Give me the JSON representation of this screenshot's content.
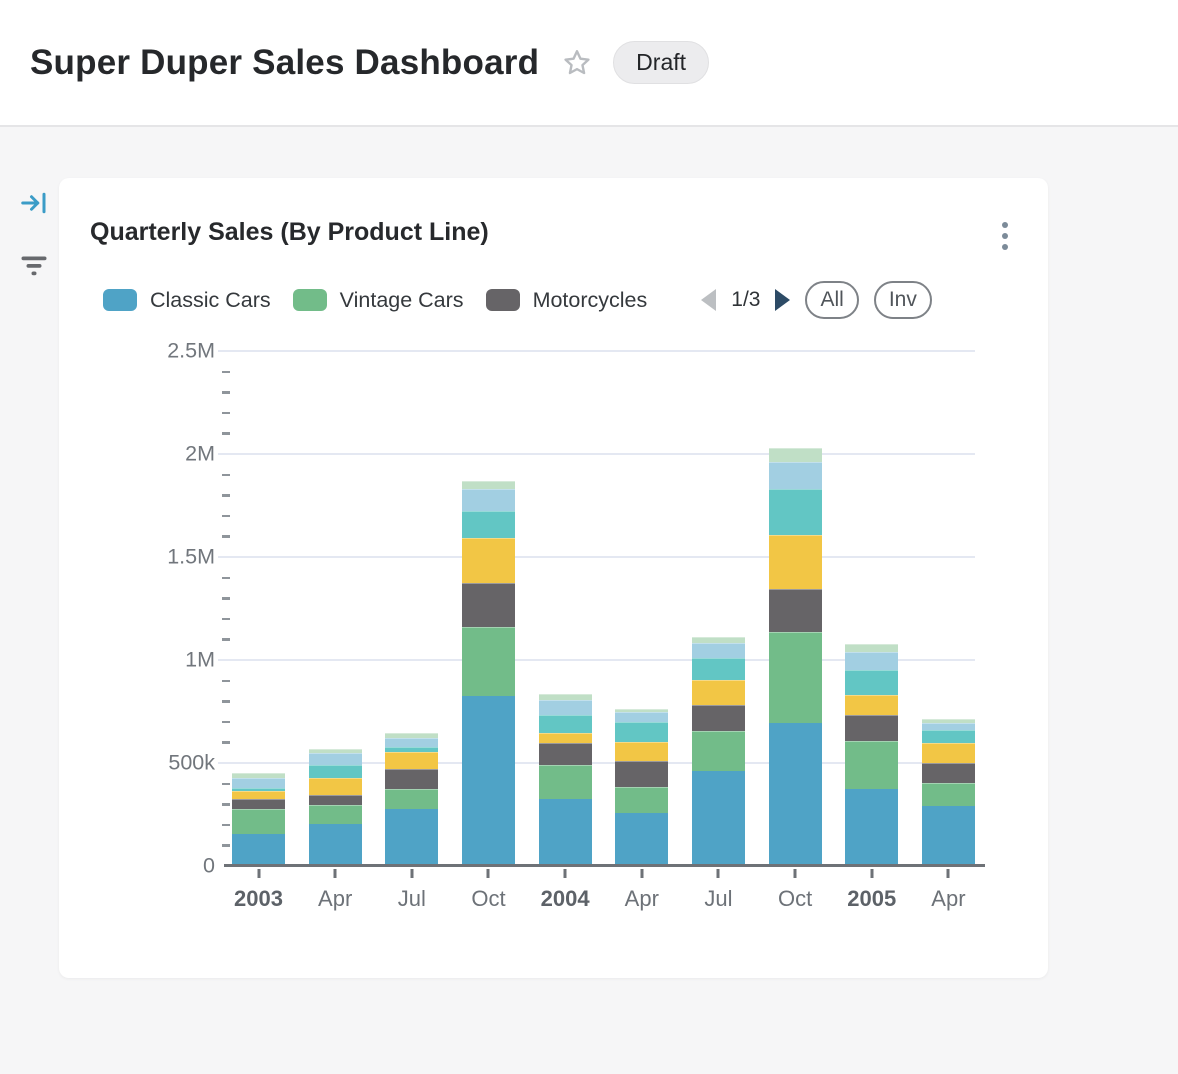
{
  "header": {
    "title": "Super Duper Sales Dashboard",
    "status_badge": "Draft"
  },
  "side_toolbar": {
    "icons": [
      "collapse-panel",
      "filter"
    ]
  },
  "card": {
    "title": "Quarterly Sales (By Product Line)",
    "legend": {
      "visible_items": [
        {
          "label": "Classic Cars",
          "color": "#4fa3c6"
        },
        {
          "label": "Vintage Cars",
          "color": "#72bc89"
        },
        {
          "label": "Motorcycles",
          "color": "#666467"
        }
      ],
      "page_indicator": "1/3",
      "buttons": [
        {
          "label": "All"
        },
        {
          "label": "Inv"
        }
      ]
    }
  },
  "chart_data": {
    "type": "bar",
    "stacked": true,
    "title": "Quarterly Sales (By Product Line)",
    "categories": [
      "2003",
      "Apr",
      "Jul",
      "Oct",
      "2004",
      "Apr",
      "Jul",
      "Oct",
      "2005",
      "Apr"
    ],
    "bold_category_indexes": [
      0,
      4,
      8
    ],
    "series": [
      {
        "name": "Classic Cars",
        "color": "#4fa3c6",
        "in_visible_legend": true,
        "values": [
          157000,
          206000,
          277000,
          826000,
          324000,
          255000,
          459000,
          694000,
          372000,
          291000
        ]
      },
      {
        "name": "Vintage Cars",
        "color": "#72bc89",
        "in_visible_legend": true,
        "values": [
          122000,
          89000,
          96000,
          335000,
          167000,
          130000,
          198000,
          444000,
          233000,
          111000
        ]
      },
      {
        "name": "Motorcycles",
        "color": "#666467",
        "in_visible_legend": true,
        "values": [
          46000,
          49000,
          99000,
          212000,
          106000,
          127000,
          127000,
          207000,
          130000,
          100000
        ]
      },
      {
        "name": "unlabeled-series-yellow",
        "color": "#f2c645",
        "in_visible_legend": false,
        "values": [
          37000,
          81000,
          82000,
          218000,
          49000,
          88000,
          118000,
          260000,
          93000,
          95000
        ]
      },
      {
        "name": "unlabeled-series-teal",
        "color": "#62c6c4",
        "in_visible_legend": false,
        "values": [
          18000,
          67000,
          24000,
          131000,
          86000,
          98000,
          109000,
          224000,
          126000,
          62000
        ]
      },
      {
        "name": "unlabeled-series-lightblue",
        "color": "#a2cfe2",
        "in_visible_legend": false,
        "values": [
          47000,
          55000,
          44000,
          107000,
          73000,
          48000,
          70000,
          134000,
          87000,
          35000
        ]
      },
      {
        "name": "unlabeled-series-palegreen",
        "color": "#c0dfc6",
        "in_visible_legend": false,
        "values": [
          23000,
          21000,
          25000,
          39000,
          28000,
          18000,
          30000,
          65000,
          35000,
          20000
        ]
      }
    ],
    "xlabel": "",
    "ylabel": "",
    "y_axis": {
      "min": 0,
      "max": 2500000,
      "tick_labels": [
        "0",
        "500k",
        "1M",
        "1.5M",
        "2M",
        "2.5M"
      ],
      "minor_ticks_per_interval": 4
    },
    "grid": true,
    "legend_position": "top"
  }
}
